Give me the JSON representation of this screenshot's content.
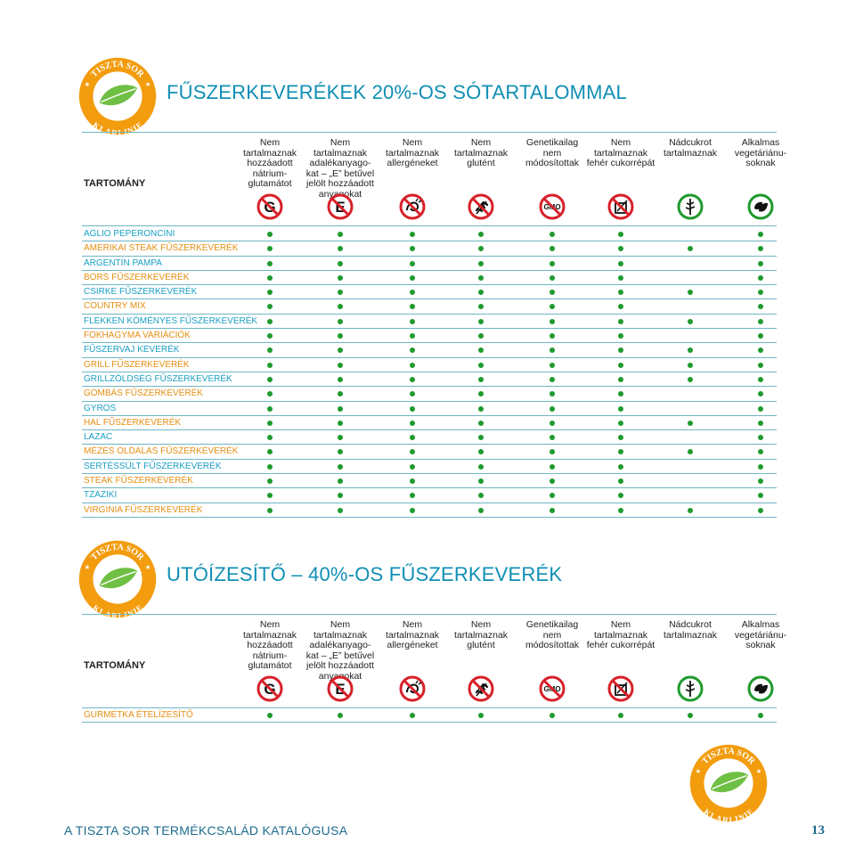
{
  "logo": {
    "top_text": "TISZTA SOR",
    "bottom_text": "KLARLINIE",
    "colors": {
      "ring": "#f29c0e",
      "band": "#e67e13",
      "leaf": "#6fbf44",
      "inner": "#ffffff"
    }
  },
  "section1": {
    "title": "FŰSZERKEVERÉKEK 20%-OS SÓTARTALOMMAL",
    "header_label": "TARTOMÁNY",
    "columns": [
      {
        "text": "Nem tartalmaznak hozzáadott nátrium-glutamátot",
        "icon": "no-msg-icon",
        "glyph": "G"
      },
      {
        "text": "Nem tartalmaznak adalékanyago-kat – „E” betűvel jelölt hozzáadott anyagokat",
        "icon": "no-additives-icon",
        "glyph": "E"
      },
      {
        "text": "Nem tartalmaznak allergéneket",
        "icon": "no-allergen-icon",
        "glyph": ""
      },
      {
        "text": "Nem tartalmaznak glutént",
        "icon": "no-gluten-icon",
        "glyph": ""
      },
      {
        "text": "Genetikailag nem módosítottak",
        "icon": "no-gmo-icon",
        "glyph": "GMO"
      },
      {
        "text": "Nem tartalmaznak fehér cukorrépát",
        "icon": "no-sugar-beet-icon",
        "glyph": ""
      },
      {
        "text": "Nádcukrot tartalmaznak",
        "icon": "cane-sugar-icon",
        "glyph": ""
      },
      {
        "text": "Alkalmas vegetáriánu-soknak",
        "icon": "vegetarian-icon",
        "glyph": ""
      }
    ],
    "rows": [
      {
        "name": "AGLIO PEPERONCINI",
        "color": "#1aa0c4",
        "dots": [
          1,
          1,
          1,
          1,
          1,
          1,
          0,
          1
        ]
      },
      {
        "name": "AMERIKAI STEAK FŰSZERKEVERÉK",
        "color": "#e58f12",
        "dots": [
          1,
          1,
          1,
          1,
          1,
          1,
          1,
          1
        ]
      },
      {
        "name": "ARGENTÍN PAMPA",
        "color": "#1aa0c4",
        "dots": [
          1,
          1,
          1,
          1,
          1,
          1,
          0,
          1
        ]
      },
      {
        "name": "BORS FŰSZERKEVERÉK",
        "color": "#e58f12",
        "dots": [
          1,
          1,
          1,
          1,
          1,
          1,
          0,
          1
        ]
      },
      {
        "name": "CSIRKE FŰSZERKEVERÉK",
        "color": "#1aa0c4",
        "dots": [
          1,
          1,
          1,
          1,
          1,
          1,
          1,
          1
        ]
      },
      {
        "name": "COUNTRY MIX",
        "color": "#e58f12",
        "dots": [
          1,
          1,
          1,
          1,
          1,
          1,
          0,
          1
        ]
      },
      {
        "name": "FLEKKEN KÖMÉNYES FŰSZERKEVERÉK",
        "color": "#1aa0c4",
        "dots": [
          1,
          1,
          1,
          1,
          1,
          1,
          1,
          1
        ]
      },
      {
        "name": "FOKHAGYMA VARIÁCIÓK",
        "color": "#e58f12",
        "dots": [
          1,
          1,
          1,
          1,
          1,
          1,
          0,
          1
        ]
      },
      {
        "name": "FŰSZERVAJ KEVERÉK",
        "color": "#1aa0c4",
        "dots": [
          1,
          1,
          1,
          1,
          1,
          1,
          1,
          1
        ]
      },
      {
        "name": "GRILL FŰSZERKEVERÉK",
        "color": "#e58f12",
        "dots": [
          1,
          1,
          1,
          1,
          1,
          1,
          1,
          1
        ]
      },
      {
        "name": "GRILLZÖLDSÉG FŰSZERKEVERÉK",
        "color": "#1aa0c4",
        "dots": [
          1,
          1,
          1,
          1,
          1,
          1,
          1,
          1
        ]
      },
      {
        "name": "GOMBÁS FŰSZERKEVERÉK",
        "color": "#e58f12",
        "dots": [
          1,
          1,
          1,
          1,
          1,
          1,
          0,
          1
        ]
      },
      {
        "name": "GYROS",
        "color": "#1aa0c4",
        "dots": [
          1,
          1,
          1,
          1,
          1,
          1,
          0,
          1
        ]
      },
      {
        "name": "HAL FŰSZERKEVERÉK",
        "color": "#e58f12",
        "dots": [
          1,
          1,
          1,
          1,
          1,
          1,
          1,
          1
        ]
      },
      {
        "name": "LAZAC",
        "color": "#1aa0c4",
        "dots": [
          1,
          1,
          1,
          1,
          1,
          1,
          0,
          1
        ]
      },
      {
        "name": "MÉZES OLDALAS FŰSZERKEVERÉK",
        "color": "#e58f12",
        "dots": [
          1,
          1,
          1,
          1,
          1,
          1,
          1,
          1
        ]
      },
      {
        "name": "SERTÉSSÜLT FŰSZERKEVERÉK",
        "color": "#1aa0c4",
        "dots": [
          1,
          1,
          1,
          1,
          1,
          1,
          0,
          1
        ]
      },
      {
        "name": "STEAK FŰSZERKEVERÉK",
        "color": "#e58f12",
        "dots": [
          1,
          1,
          1,
          1,
          1,
          1,
          0,
          1
        ]
      },
      {
        "name": "TZAZIKI",
        "color": "#1aa0c4",
        "dots": [
          1,
          1,
          1,
          1,
          1,
          1,
          0,
          1
        ]
      },
      {
        "name": "VIRGINIA FŰSZERKEVERÉK",
        "color": "#e58f12",
        "dots": [
          1,
          1,
          1,
          1,
          1,
          1,
          1,
          1
        ]
      }
    ]
  },
  "section2": {
    "title": "UTÓÍZESÍTŐ – 40%-OS FŰSZERKEVERÉK",
    "header_label": "TARTOMÁNY",
    "rows": [
      {
        "name": "GURMETKA ÉTELÍZESÍTŐ",
        "color": "#e58f12",
        "dots": [
          1,
          1,
          1,
          1,
          1,
          1,
          1,
          1
        ]
      }
    ]
  },
  "footer": {
    "text": "A TISZTA SOR TERMÉKCSALÁD KATALÓGUSA",
    "page_number": "13"
  },
  "colors": {
    "title": "#0f8fb4",
    "rule": "#6fb6c6",
    "dot": "#1f9a2e",
    "prohibit": "#d7212a",
    "positive": "#1f9a2e"
  }
}
